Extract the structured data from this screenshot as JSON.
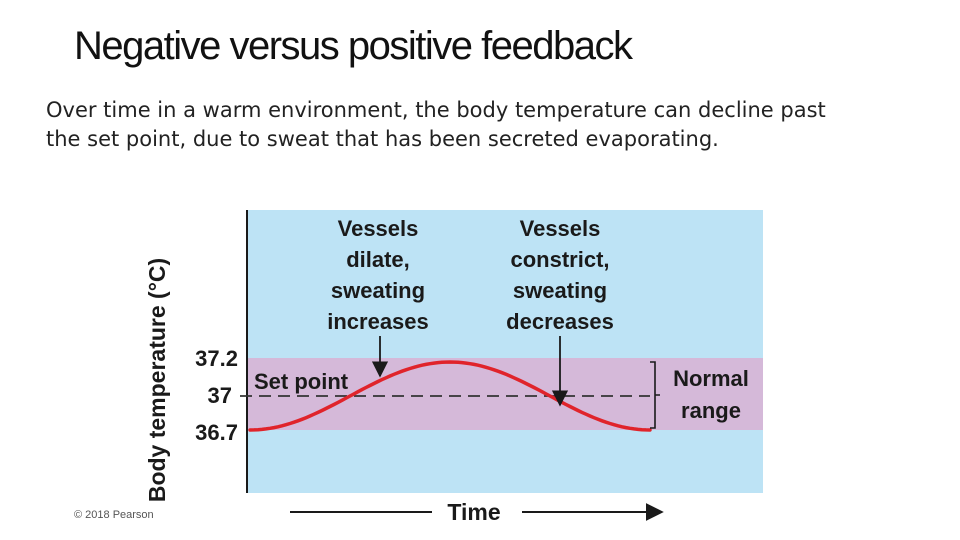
{
  "slide": {
    "title": "Negative versus positive feedback",
    "body": "Over time in a warm environment, the body temperature can decline past the set point, due to sweat that has been secreted evaporating.",
    "copyright": "© 2018 Pearson"
  },
  "figure": {
    "y_axis_label": "Body temperature (°C)",
    "x_axis_label": "Time",
    "ticks": [
      "37.2",
      "37",
      "36.7"
    ],
    "set_point_label": "Set point",
    "normal_range_label": [
      "Normal",
      "range"
    ],
    "annotation_left": [
      "Vessels",
      "dilate,",
      "sweating",
      "increases"
    ],
    "annotation_right": [
      "Vessels",
      "constrict,",
      "sweating",
      "decreases"
    ],
    "colors": {
      "background": "#bde3f5",
      "normal_range_band": "#d5b9d9",
      "curve": "#e0242b",
      "text": "#1a1a1a"
    }
  }
}
